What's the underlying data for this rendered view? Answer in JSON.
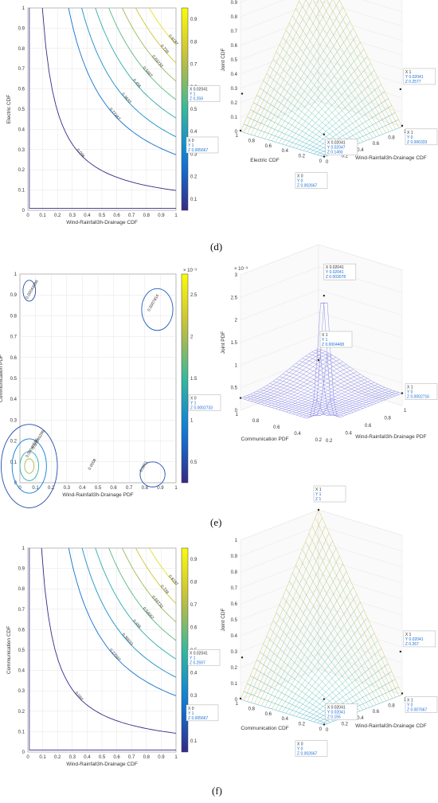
{
  "panels": [
    {
      "label": "(d)",
      "contour": {
        "xlabel": "Wind-Rainfall3h-Drainage CDF",
        "ylabel": "Electric CDF",
        "ticks": [
          "0",
          "0.1",
          "0.2",
          "0.3",
          "0.4",
          "0.5",
          "0.6",
          "0.7",
          "0.8",
          "0.9",
          "1"
        ],
        "colorbar_ticks": [
          "0.1",
          "0.2",
          "0.3",
          "0.4",
          "0.5",
          "0.6",
          "0.7",
          "0.8",
          "0.9"
        ],
        "levels": [
          "0.098",
          "0.27487",
          "0.3633",
          "0.456",
          "0.5467",
          "0.63733",
          "0.728",
          "0.8187"
        ]
      },
      "surface": {
        "xlabel": "Wind-Rainfall3h-Drainage CDF",
        "ylabel": "Electric CDF",
        "zlabel": "Joint CDF",
        "zticks": [
          "0",
          "0.1",
          "0.2",
          "0.3",
          "0.4",
          "0.5",
          "0.6",
          "0.7",
          "0.8",
          "0.9",
          "1"
        ],
        "bticks_left": [
          "1",
          "0.8",
          "0.6",
          "0.4",
          "0.2",
          "0"
        ],
        "bticks_right": [
          "0",
          "0.2",
          "0.4",
          "0.6",
          "0.8",
          "1"
        ],
        "datatips": [
          {
            "lines": [
              "X 1",
              "Y 1",
              "Z 1"
            ]
          },
          {
            "lines": [
              "X 0.02041",
              "Y 1",
              "Z 0.259"
            ]
          },
          {
            "lines": [
              "X 1",
              "Y 0.02041",
              "Z 0.2577"
            ]
          },
          {
            "lines": [
              "X 0",
              "Y 1",
              "Z 0.005667"
            ]
          },
          {
            "lines": [
              "X 1",
              "Y 0",
              "Z 0.006333"
            ]
          },
          {
            "lines": [
              "X 0.02041",
              "Y 0.02047",
              "Z 0.1493"
            ]
          },
          {
            "lines": [
              "X 0",
              "Y 0",
              "Z 0.002667"
            ]
          }
        ]
      }
    },
    {
      "label": "(e)",
      "contour": {
        "xlabel": "Wind-Rainfall3h-Drainage PDF",
        "ylabel": "Communication PDF",
        "ticks": [
          "0",
          "0.1",
          "0.2",
          "0.3",
          "0.4",
          "0.5",
          "0.6",
          "0.7",
          "0.8",
          "0.9",
          "1"
        ],
        "colorbar_ticks": [
          "0.5",
          "1",
          "1.5",
          "2",
          "2.5"
        ],
        "colorbar_exp": "× 10⁻³",
        "levels": [
          "0.00044996",
          "0.0007814",
          "0.00046596",
          "0.00045296",
          "0.0008",
          "0.0011"
        ]
      },
      "surface": {
        "xlabel": "Wind-Rainfall3h-Drainage PDF",
        "ylabel": "Communication PDF",
        "zlabel": "Joint PDF",
        "zexp": "× 10⁻³",
        "zticks": [
          "0",
          "0.5",
          "1",
          "1.5",
          "2",
          "2.5",
          "3"
        ],
        "bticks_left": [
          "1",
          "0.8",
          "0.6",
          "0.4",
          "0.2"
        ],
        "bticks_right": [
          "0.2",
          "0.4",
          "0.6",
          "0.8",
          "1"
        ],
        "datatips": [
          {
            "lines": [
              "X 0.02041",
              "Y 0.02041",
              "Z 0.003078"
            ]
          },
          {
            "lines": [
              "X 1",
              "Y 1",
              "Z 0.0004408"
            ]
          },
          {
            "lines": [
              "X 0",
              "Y 1",
              "Z 0.0002733"
            ]
          },
          {
            "lines": [
              "X 1",
              "Y 0",
              "Z 0.0002716"
            ]
          }
        ]
      }
    },
    {
      "label": "(f)",
      "contour": {
        "xlabel": "Wind-Rainfall3h-Drainage CDF",
        "ylabel": "Communication CDF",
        "ticks": [
          "0",
          "0.1",
          "0.2",
          "0.3",
          "0.4",
          "0.5",
          "0.6",
          "0.7",
          "0.8",
          "0.9",
          "1"
        ],
        "colorbar_ticks": [
          "0.1",
          "0.2",
          "0.3",
          "0.4",
          "0.5",
          "0.6",
          "0.7",
          "0.8",
          "0.9"
        ],
        "levels": [
          "0.092",
          "0.27567",
          "0.36633",
          "0.456",
          "0.54667",
          "0.63733",
          "0.728",
          "0.8187"
        ]
      },
      "surface": {
        "xlabel": "Wind-Rainfall3h-Drainage CDF",
        "ylabel": "Communication CDF",
        "zlabel": "Joint CDF",
        "zticks": [
          "0",
          "0.1",
          "0.2",
          "0.3",
          "0.4",
          "0.5",
          "0.6",
          "0.7",
          "0.8",
          "0.9",
          "1"
        ],
        "bticks_left": [
          "1",
          "0.8",
          "0.6",
          "0.4",
          "0.2",
          "0"
        ],
        "bticks_right": [
          "0",
          "0.2",
          "0.4",
          "0.6",
          "0.8",
          "1"
        ],
        "datatips": [
          {
            "lines": [
              "X 1",
              "Y 1",
              "Z 1"
            ]
          },
          {
            "lines": [
              "X 0.02041",
              "Y 1",
              "Z 0.2597"
            ]
          },
          {
            "lines": [
              "X 1",
              "Y 0.02041",
              "Z 0.267"
            ]
          },
          {
            "lines": [
              "X 0",
              "Y 1",
              "Z 0.005667"
            ]
          },
          {
            "lines": [
              "X 1",
              "Y 0",
              "Z 0.007667"
            ]
          },
          {
            "lines": [
              "X 0.02041",
              "Y 0.02041",
              "Z 0.155"
            ]
          },
          {
            "lines": [
              "X 0",
              "Y 0",
              "Z 0.002667"
            ]
          }
        ]
      }
    }
  ],
  "colors": {
    "contour_low": "#3b2ea8",
    "contour_mid": "#2fb4a6",
    "contour_high": "#f5dc3a",
    "grid": "#e4e4e4",
    "mesh": "#6f6fe0"
  },
  "chart_data": [
    {
      "type": "heatmap",
      "name_ref": "d-contour",
      "x_range": [
        0,
        1
      ],
      "y_range": [
        0,
        1
      ],
      "levels": [
        0.098,
        0.27487,
        0.3633,
        0.456,
        0.5467,
        0.63733,
        0.728,
        0.8187
      ],
      "colorbar_range": [
        0.1,
        0.9
      ]
    },
    {
      "type": "heatmap",
      "name_ref": "d-surface",
      "z_range": [
        0,
        1
      ],
      "points": [
        {
          "x": 1,
          "y": 1,
          "z": 1
        },
        {
          "x": 0.02041,
          "y": 1,
          "z": 0.259
        },
        {
          "x": 1,
          "y": 0.02041,
          "z": 0.2577
        },
        {
          "x": 0,
          "y": 1,
          "z": 0.005667
        },
        {
          "x": 1,
          "y": 0,
          "z": 0.006333
        },
        {
          "x": 0.02041,
          "y": 0.02047,
          "z": 0.1493
        },
        {
          "x": 0,
          "y": 0,
          "z": 0.002667
        }
      ]
    },
    {
      "type": "heatmap",
      "name_ref": "e-contour",
      "x_range": [
        0,
        1
      ],
      "y_range": [
        0,
        1
      ],
      "colorbar_range": [
        0.0005,
        0.0025
      ]
    },
    {
      "type": "heatmap",
      "name_ref": "e-surface",
      "z_range": [
        0,
        0.003
      ],
      "points": [
        {
          "x": 0.02041,
          "y": 0.02041,
          "z": 0.003078
        },
        {
          "x": 1,
          "y": 1,
          "z": 0.0004408
        },
        {
          "x": 0,
          "y": 1,
          "z": 0.0002733
        },
        {
          "x": 1,
          "y": 0,
          "z": 0.0002716
        }
      ]
    },
    {
      "type": "heatmap",
      "name_ref": "f-contour",
      "x_range": [
        0,
        1
      ],
      "y_range": [
        0,
        1
      ],
      "levels": [
        0.092,
        0.27567,
        0.36633,
        0.456,
        0.54667,
        0.63733,
        0.728,
        0.8187
      ],
      "colorbar_range": [
        0.1,
        0.9
      ]
    },
    {
      "type": "heatmap",
      "name_ref": "f-surface",
      "z_range": [
        0,
        1
      ],
      "points": [
        {
          "x": 1,
          "y": 1,
          "z": 1
        },
        {
          "x": 0.02041,
          "y": 1,
          "z": 0.2597
        },
        {
          "x": 1,
          "y": 0.02041,
          "z": 0.267
        },
        {
          "x": 0,
          "y": 1,
          "z": 0.005667
        },
        {
          "x": 1,
          "y": 0,
          "z": 0.007667
        },
        {
          "x": 0.02041,
          "y": 0.02041,
          "z": 0.155
        },
        {
          "x": 0,
          "y": 0,
          "z": 0.002667
        }
      ]
    }
  ]
}
